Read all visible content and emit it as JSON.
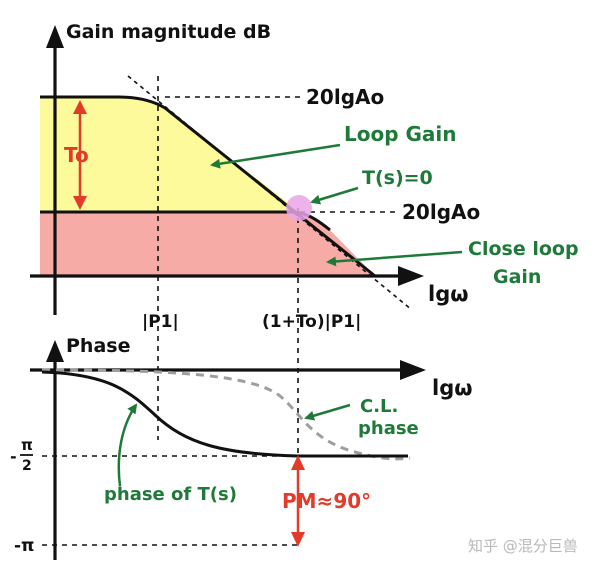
{
  "colors": {
    "loop_fill": "#fdfa9b",
    "closed_fill": "#f7aba6",
    "ink": "#111111",
    "green": "#1f7a3a",
    "red": "#e23b2a",
    "phase_dash": "#9e9e9e",
    "marker": "#e9a6e8"
  },
  "gain_plot": {
    "y_axis_label": "Gain magnitude dB",
    "x_axis_label": "lgω",
    "level_top": "20lgAo",
    "level_mid": "20lgAo",
    "t0_label": "To",
    "pole1_label": "|P1|",
    "pole2_label": "(1+To)|P1|",
    "loop_gain_label": "Loop Gain",
    "ts_zero_label": "T(s)=0",
    "close_loop_label": [
      "Close loop",
      "Gain"
    ]
  },
  "phase_plot": {
    "y_axis_label": "Phase",
    "x_axis_label": "lgω",
    "tick_half_pi_top": "π",
    "tick_half_pi_bottom": "2",
    "tick_neg_pi": "-π",
    "tick_minus": "-",
    "cl_phase_label": [
      "C.L.",
      "phase"
    ],
    "phase_t_label": "phase of T(s)",
    "pm_label": "PM≈90°"
  },
  "watermark": "知乎 @混分巨兽"
}
